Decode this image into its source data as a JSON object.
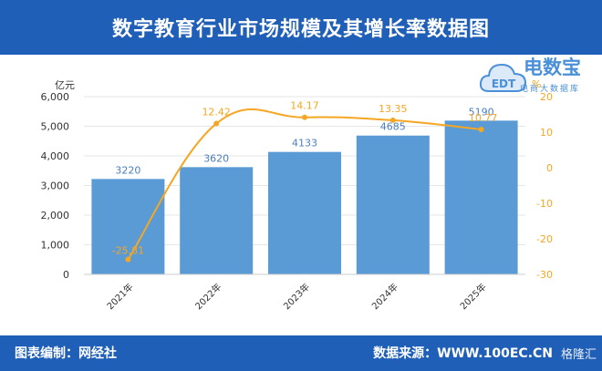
{
  "title": "数字教育行业市场规模及其增长率数据图",
  "footer": {
    "compiler": "图表编制：网经社",
    "source": "数据来源：WWW.100EC.CN",
    "watermark": "格隆汇"
  },
  "logo": {
    "brand": "电数宝",
    "sub": "电商大数据库",
    "mark": "EDT"
  },
  "chart_data": {
    "type": "bar+line",
    "categories": [
      "2021年",
      "2022年",
      "2023年",
      "2024年",
      "2025年"
    ],
    "series": [
      {
        "values": [
          3220,
          3620,
          4133,
          4685,
          5190
        ],
        "axis": "left",
        "kind": "bar",
        "color": "#5b9bd5"
      },
      {
        "values": [
          -25.81,
          12.42,
          14.17,
          13.35,
          10.77
        ],
        "axis": "right",
        "kind": "line",
        "color": "#f5a623"
      }
    ],
    "y_left": {
      "label": "亿元",
      "ticks": [
        "0",
        "1,000",
        "2,000",
        "3,000",
        "4,000",
        "5,000",
        "6,000"
      ],
      "range": [
        0,
        6000
      ]
    },
    "y_right": {
      "label": "%",
      "ticks": [
        "-30",
        "-20",
        "-10",
        "0",
        "10",
        "20"
      ],
      "range": [
        -30,
        20
      ]
    },
    "bar_labels": [
      "3220",
      "3620",
      "4133",
      "4685",
      "5190"
    ],
    "line_labels": [
      "-25.81",
      "12.42",
      "14.17",
      "13.35",
      "10.77"
    ],
    "grid": true
  }
}
